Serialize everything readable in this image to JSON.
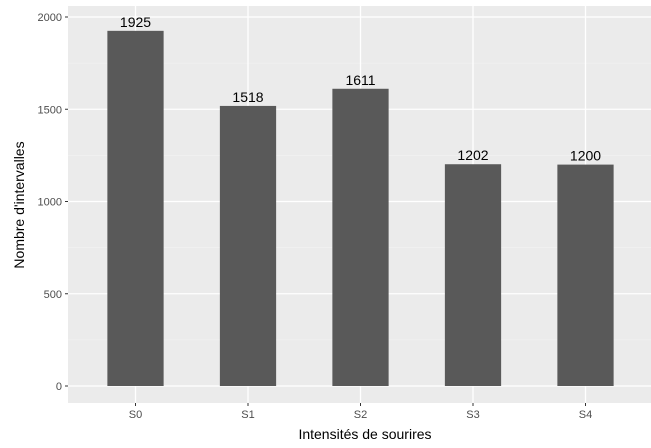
{
  "chart_data": {
    "type": "bar",
    "title": "",
    "xlabel": "Intensités de sourires",
    "ylabel": "Nombre d'intervalles",
    "categories": [
      "S0",
      "S1",
      "S2",
      "S3",
      "S4"
    ],
    "values": [
      1925,
      1518,
      1611,
      1202,
      1200
    ],
    "data_labels": [
      "1925",
      "1518",
      "1611",
      "1202",
      "1200"
    ],
    "ylim": [
      -80,
      2025
    ],
    "yticks": [
      0,
      500,
      1000,
      1500,
      2000
    ],
    "ytick_labels": [
      "0",
      "500",
      "1000",
      "1500",
      "2000"
    ],
    "grid": true,
    "legend": "none",
    "colors": {
      "bar": "#595959",
      "panel_background": "#ebebeb",
      "grid_major": "#ffffff",
      "grid_minor": "#f2f2f2",
      "tick_label": "#4d4d4d",
      "tick_mark": "#333333",
      "text": "#000000"
    }
  }
}
